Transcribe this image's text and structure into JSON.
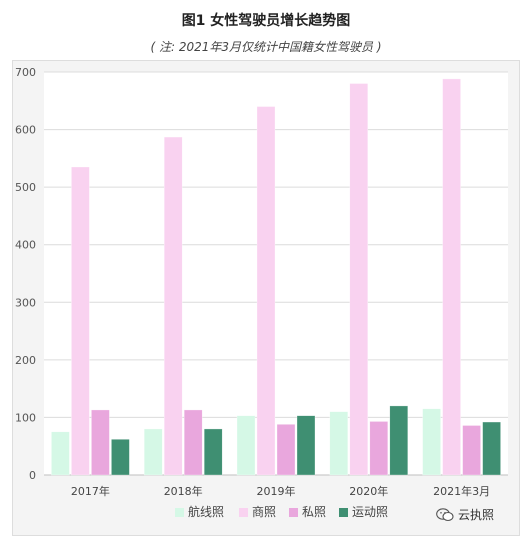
{
  "title": "图1 女性驾驶员增长趋势图",
  "subtitle": "( 注: 2021年3月仅统计中国籍女性驾驶员 )",
  "watermark": {
    "icon": "wechat-icon",
    "text": "云执照"
  },
  "colors": {
    "航线照": "#d5f8e6",
    "商照": "#f9d2f0",
    "私照": "#e9a7dd",
    "运动照": "#3f8f72"
  },
  "chart_data": {
    "type": "bar",
    "categories": [
      "2017年",
      "2018年",
      "2019年",
      "2020年",
      "2021年3月"
    ],
    "series": [
      {
        "name": "航线照",
        "values": [
          75,
          80,
          103,
          110,
          115
        ]
      },
      {
        "name": "商照",
        "values": [
          535,
          587,
          640,
          680,
          688
        ]
      },
      {
        "name": "私照",
        "values": [
          113,
          113,
          88,
          93,
          86
        ]
      },
      {
        "name": "运动照",
        "values": [
          62,
          80,
          103,
          120,
          92
        ]
      }
    ],
    "ylim": [
      0,
      700
    ],
    "yticks": [
      0,
      100,
      200,
      300,
      400,
      500,
      600,
      700
    ],
    "grid": true,
    "legend": "bottom"
  }
}
